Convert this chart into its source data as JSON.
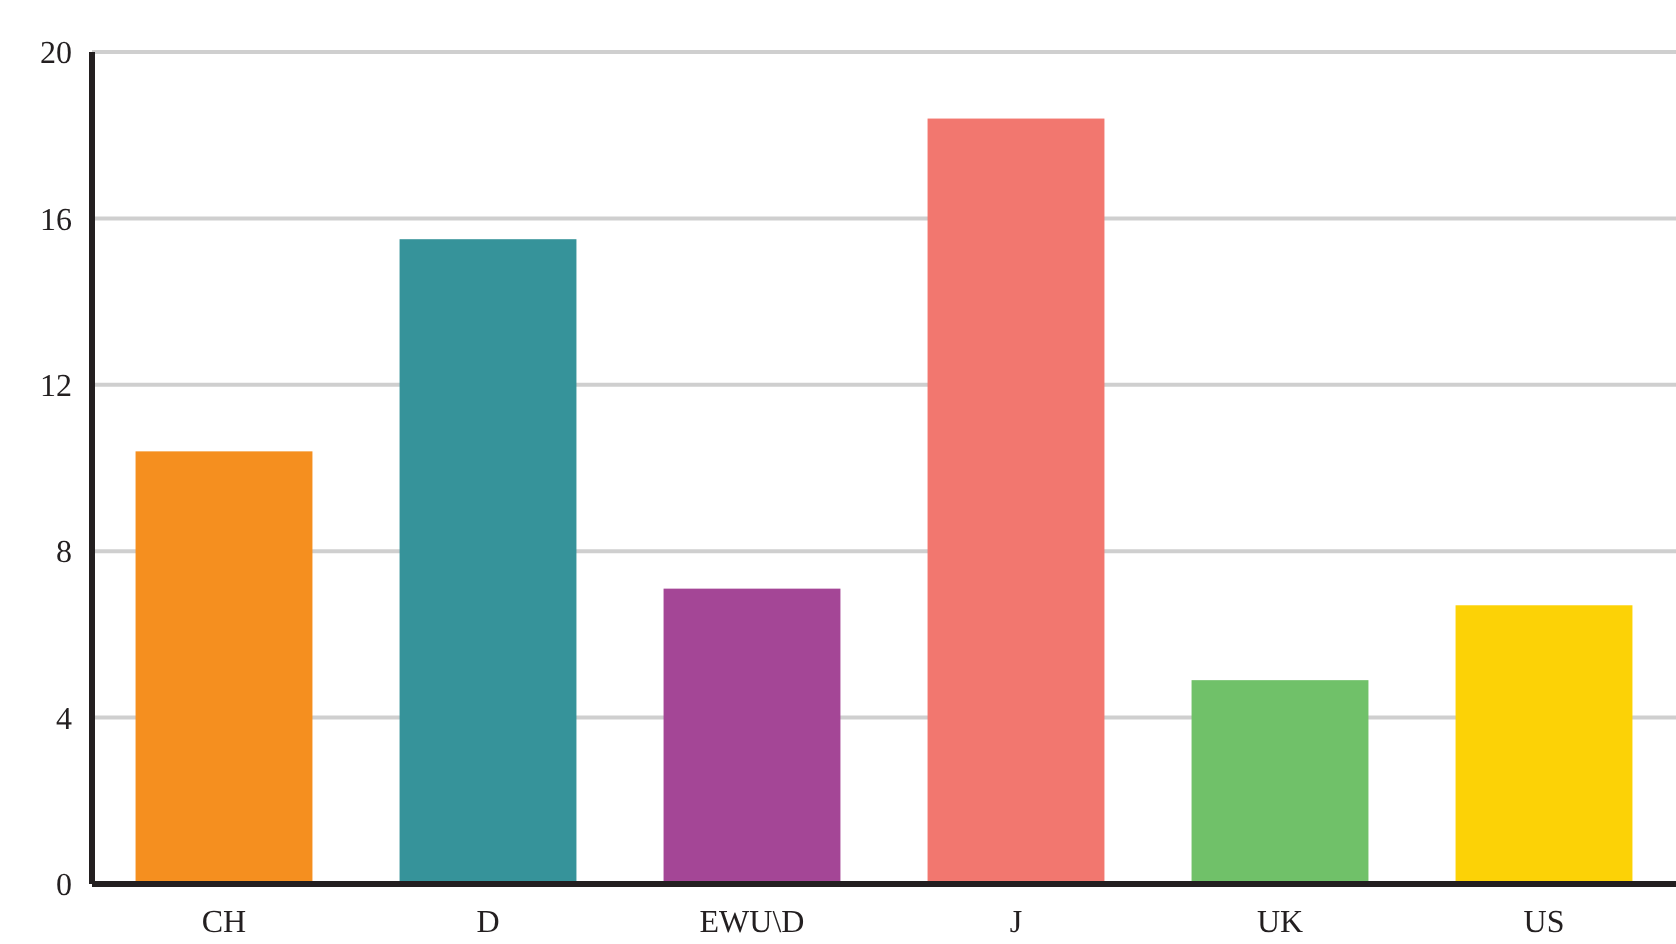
{
  "chart_data": {
    "type": "bar",
    "categories": [
      "CH",
      "D",
      "EWU\\D",
      "J",
      "UK",
      "US"
    ],
    "values": [
      10.4,
      15.5,
      7.1,
      18.4,
      4.9,
      6.7
    ],
    "colors": [
      "#f58f1f",
      "#36939a",
      "#a44696",
      "#f2776f",
      "#70c169",
      "#fcd206"
    ],
    "ylim": [
      0,
      20
    ],
    "yticks": [
      0,
      4,
      8,
      12,
      16,
      20
    ],
    "grid": "y"
  }
}
